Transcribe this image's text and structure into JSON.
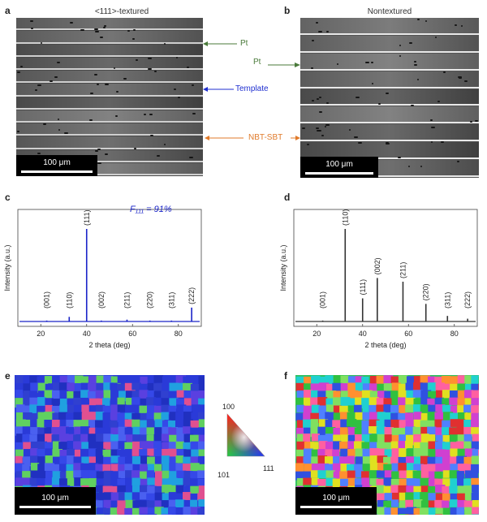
{
  "panels": {
    "a": {
      "letter": "a",
      "title": "<111>-textured",
      "scale": "100 μm"
    },
    "b": {
      "letter": "b",
      "title": "Nontextured",
      "scale": "100 μm"
    },
    "c": {
      "letter": "c",
      "annotation": "F₁₁₁ = 91%"
    },
    "d": {
      "letter": "d"
    },
    "e": {
      "letter": "e",
      "scale": "100 μm"
    },
    "f": {
      "letter": "f",
      "scale": "100 μm"
    }
  },
  "callouts": {
    "pt_a": "Pt",
    "template": "Template",
    "nbt": "NBT-SBT",
    "pt_b": "Pt"
  },
  "legend": {
    "top": "100",
    "left": "101",
    "right": "111"
  },
  "colors": {
    "pt": "#4a7a3a",
    "template": "#1f2fd0",
    "nbt": "#e07a2a",
    "xrd_c": "#1a24c8",
    "xrd_d": "#333333"
  },
  "chart_data": [
    {
      "type": "line",
      "panel": "c",
      "xlabel": "2 theta (deg)",
      "ylabel": "Intensity (a.u.)",
      "xlim": [
        10,
        90
      ],
      "ylim": [
        0,
        100
      ],
      "xticks": [
        20,
        40,
        60,
        80
      ],
      "peaks": [
        {
          "label": "(001)",
          "x": 22.6,
          "y": 1
        },
        {
          "label": "(110)",
          "x": 32.4,
          "y": 5
        },
        {
          "label": "(111)",
          "x": 40.0,
          "y": 100
        },
        {
          "label": "(002)",
          "x": 46.4,
          "y": 1
        },
        {
          "label": "(211)",
          "x": 57.6,
          "y": 2
        },
        {
          "label": "(220)",
          "x": 67.6,
          "y": 1
        },
        {
          "label": "(311)",
          "x": 77.0,
          "y": 1
        },
        {
          "label": "(222)",
          "x": 85.8,
          "y": 15
        }
      ]
    },
    {
      "type": "line",
      "panel": "d",
      "xlabel": "2 theta (deg)",
      "ylabel": "Intensity (a.u.)",
      "xlim": [
        10,
        90
      ],
      "ylim": [
        0,
        100
      ],
      "xticks": [
        20,
        40,
        60,
        80
      ],
      "peaks": [
        {
          "label": "(001)",
          "x": 22.6,
          "y": 1
        },
        {
          "label": "(110)",
          "x": 32.4,
          "y": 100
        },
        {
          "label": "(111)",
          "x": 40.0,
          "y": 25
        },
        {
          "label": "(002)",
          "x": 46.4,
          "y": 47
        },
        {
          "label": "(211)",
          "x": 57.6,
          "y": 43
        },
        {
          "label": "(220)",
          "x": 67.6,
          "y": 19
        },
        {
          "label": "(311)",
          "x": 77.0,
          "y": 6
        },
        {
          "label": "(222)",
          "x": 85.8,
          "y": 3
        }
      ]
    }
  ]
}
